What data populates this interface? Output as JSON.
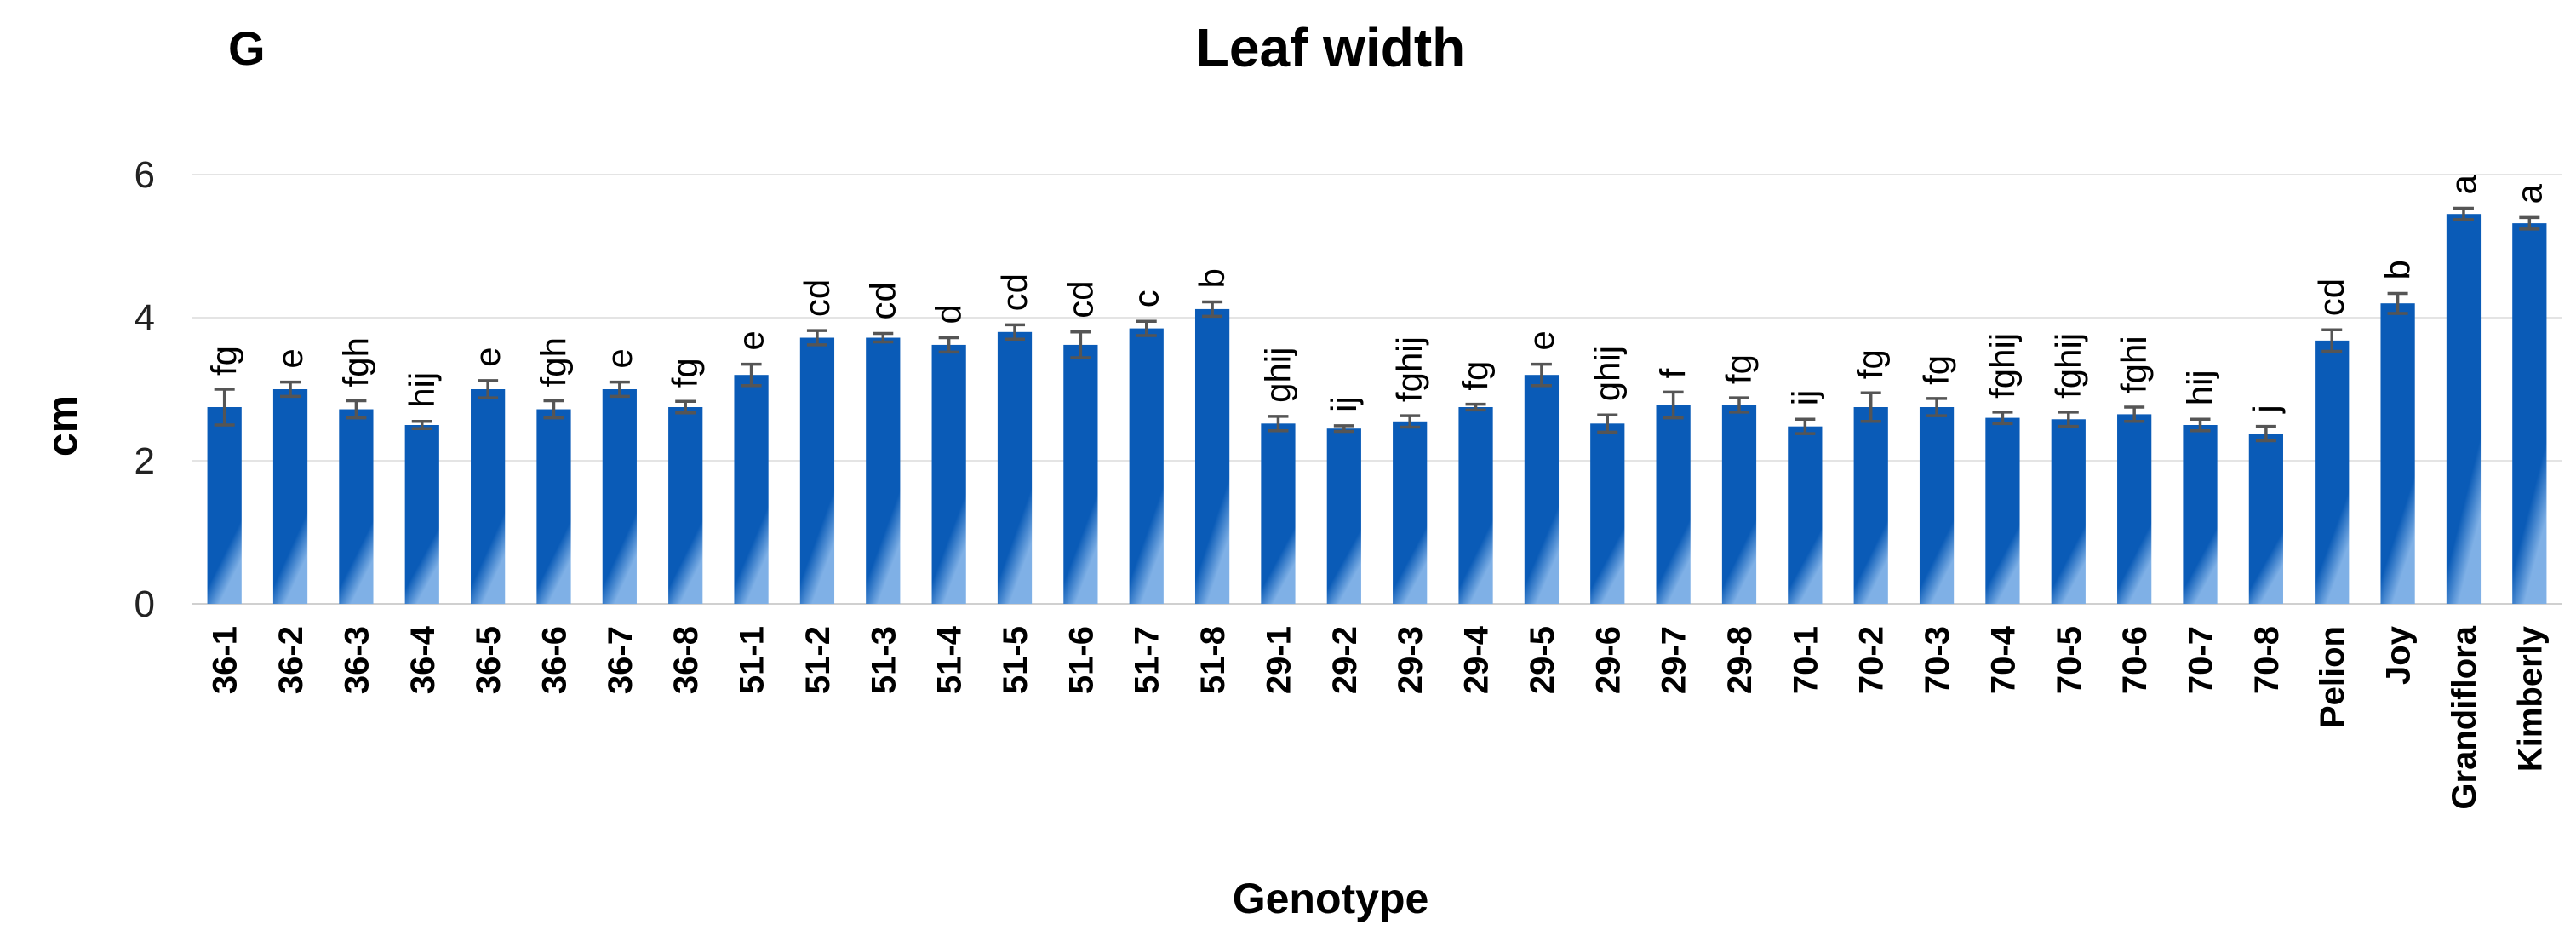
{
  "panel_label": "G",
  "chart_data": {
    "type": "bar",
    "title": "Leaf width",
    "xlabel": "Genotype",
    "ylabel": "cm",
    "ylim": [
      0,
      6
    ],
    "yticks": [
      0,
      2,
      4,
      6
    ],
    "grid": true,
    "bar_color": "#0a5bb7",
    "error_color": "#555555",
    "categories": [
      "36-1",
      "36-2",
      "36-3",
      "36-4",
      "36-5",
      "36-6",
      "36-7",
      "36-8",
      "51-1",
      "51-2",
      "51-3",
      "51-4",
      "51-5",
      "51-6",
      "51-7",
      "51-8",
      "29-1",
      "29-2",
      "29-3",
      "29-4",
      "29-5",
      "29-6",
      "29-7",
      "29-8",
      "70-1",
      "70-2",
      "70-3",
      "70-4",
      "70-5",
      "70-6",
      "70-7",
      "70-8",
      "Pelion",
      "Joy",
      "Grandiflora",
      "Kimberly"
    ],
    "values": [
      2.75,
      3.0,
      2.72,
      2.5,
      3.0,
      2.72,
      3.0,
      2.75,
      3.2,
      3.72,
      3.72,
      3.62,
      3.8,
      3.62,
      3.85,
      4.12,
      2.52,
      2.45,
      2.55,
      2.75,
      3.2,
      2.52,
      2.78,
      2.78,
      2.48,
      2.75,
      2.75,
      2.6,
      2.58,
      2.65,
      2.5,
      2.38,
      3.68,
      4.2,
      5.45,
      5.32
    ],
    "errors": [
      0.25,
      0.1,
      0.12,
      0.05,
      0.12,
      0.12,
      0.1,
      0.08,
      0.15,
      0.1,
      0.06,
      0.1,
      0.1,
      0.18,
      0.1,
      0.1,
      0.1,
      0.04,
      0.08,
      0.04,
      0.15,
      0.12,
      0.18,
      0.1,
      0.1,
      0.2,
      0.12,
      0.08,
      0.1,
      0.1,
      0.08,
      0.1,
      0.15,
      0.14,
      0.08,
      0.08
    ],
    "significance": [
      "fg",
      "e",
      "fgh",
      "hij",
      "e",
      "fgh",
      "e",
      "fg",
      "e",
      "cd",
      "cd",
      "d",
      "cd",
      "cd",
      "c",
      "b",
      "ghij",
      "ij",
      "fghij",
      "fg",
      "e",
      "ghij",
      "f",
      "fg",
      "ij",
      "fg",
      "fg",
      "fghij",
      "fghij",
      "fghi",
      "hij",
      "j",
      "cd",
      "b",
      "a",
      "a"
    ]
  }
}
